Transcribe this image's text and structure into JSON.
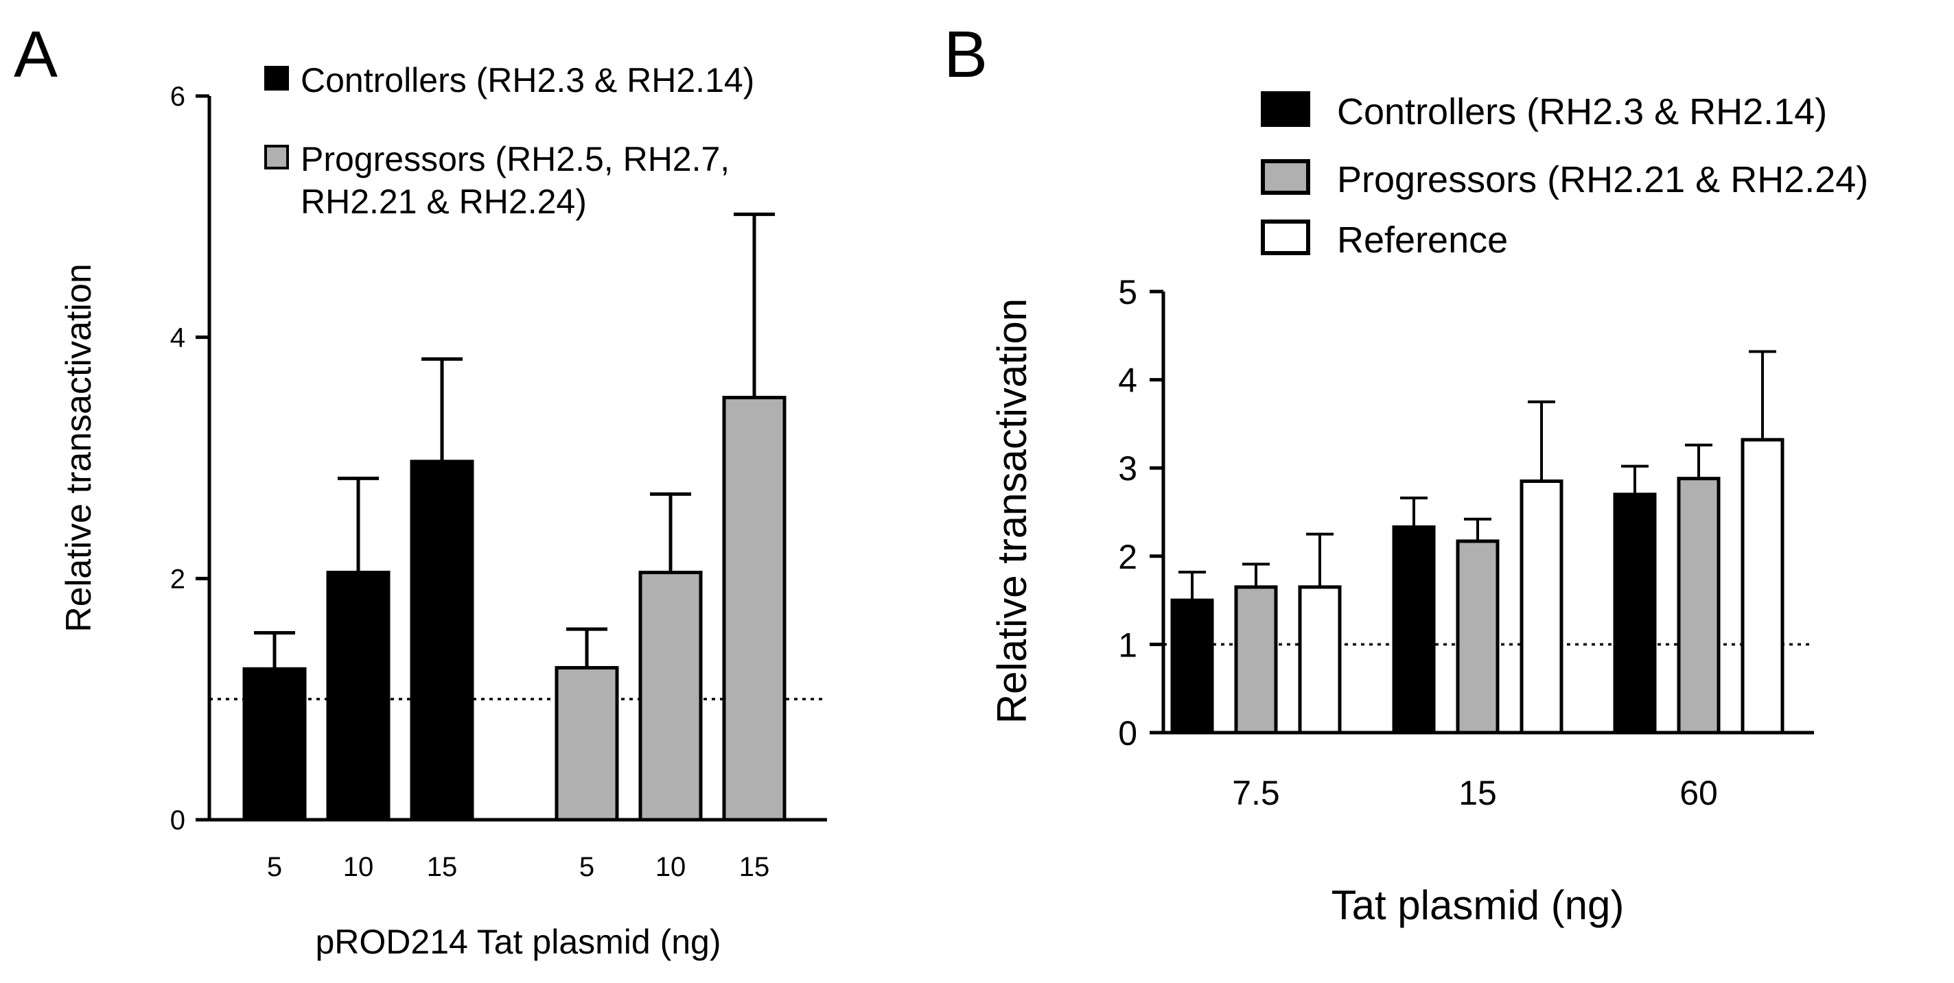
{
  "chart_data": [
    {
      "panel": "A",
      "type": "bar",
      "ylabel": "Relative transactivation",
      "xlabel": "pROD214 Tat plasmid (ng)",
      "ylim": [
        0,
        6
      ],
      "yticks": [
        "0",
        "2",
        "4",
        "6"
      ],
      "reference_line": 1,
      "groups": [
        {
          "name": "Controllers (RH2.3 & RH2.14)",
          "color": "#000000",
          "categories": [
            "5",
            "10",
            "15"
          ],
          "values": [
            1.25,
            2.05,
            2.97
          ],
          "errors": [
            0.3,
            0.78,
            0.85
          ]
        },
        {
          "name": "Progressors (RH2.5, RH2.7, RH2.21 & RH2.24)",
          "color": "#b0b0b0",
          "categories": [
            "5",
            "10",
            "15"
          ],
          "values": [
            1.26,
            2.05,
            3.5
          ],
          "errors": [
            0.32,
            0.65,
            1.52
          ]
        }
      ],
      "legend": [
        {
          "color": "#000000",
          "lines": [
            "Controllers (RH2.3 & RH2.14)"
          ]
        },
        {
          "color": "#b0b0b0",
          "lines": [
            "Progressors (RH2.5, RH2.7,",
            "RH2.21 & RH2.24)"
          ]
        }
      ]
    },
    {
      "panel": "B",
      "type": "bar",
      "ylabel": "Relative transactivation",
      "xlabel": "Tat plasmid (ng)",
      "ylim": [
        0,
        5
      ],
      "yticks": [
        "0",
        "1",
        "2",
        "3",
        "4",
        "5"
      ],
      "reference_line": 1,
      "categories": [
        "7.5",
        "15",
        "60"
      ],
      "series": [
        {
          "name": "Controllers (RH2.3 & RH2.14)",
          "color": "#000000",
          "values": [
            1.5,
            2.33,
            2.7
          ],
          "errors": [
            0.32,
            0.33,
            0.32
          ]
        },
        {
          "name": "Progressors (RH2.21 & RH2.24)",
          "color": "#b0b0b0",
          "values": [
            1.65,
            2.17,
            2.88
          ],
          "errors": [
            0.26,
            0.25,
            0.38
          ]
        },
        {
          "name": "Reference",
          "color": "#ffffff",
          "values": [
            1.65,
            2.85,
            3.32
          ],
          "errors": [
            0.6,
            0.9,
            1.0
          ]
        }
      ]
    }
  ]
}
